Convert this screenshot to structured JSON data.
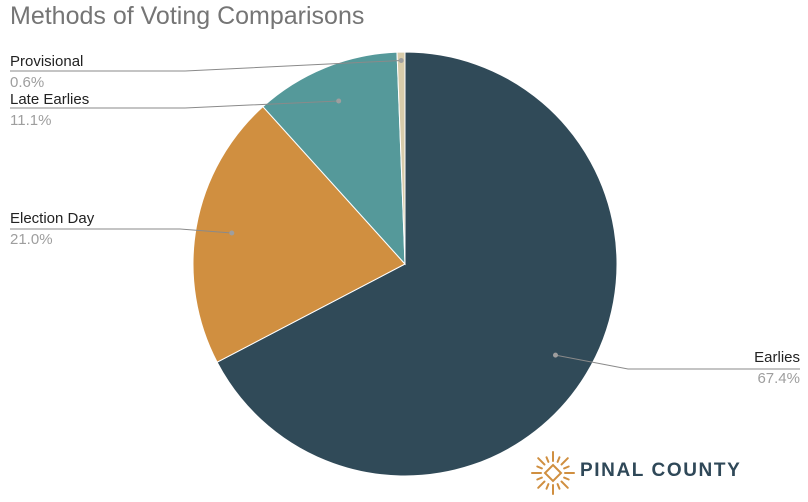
{
  "chart_data": {
    "type": "pie",
    "title": "Methods of Voting Comparisons",
    "slices": [
      {
        "label": "Earlies",
        "percent_label": "67.4%",
        "value": 67.4,
        "color": "#304a58"
      },
      {
        "label": "Election Day",
        "percent_label": "21.0%",
        "value": 21.0,
        "color": "#d08f40"
      },
      {
        "label": "Late Earlies",
        "percent_label": "11.1%",
        "value": 11.1,
        "color": "#55999a"
      },
      {
        "label": "Provisional",
        "percent_label": "0.6%",
        "value": 0.6,
        "color": "#d8ccaa"
      }
    ]
  },
  "logo": {
    "text": "PINAL COUNTY",
    "icon": "sun-burst-icon",
    "color": "#d08f40"
  }
}
